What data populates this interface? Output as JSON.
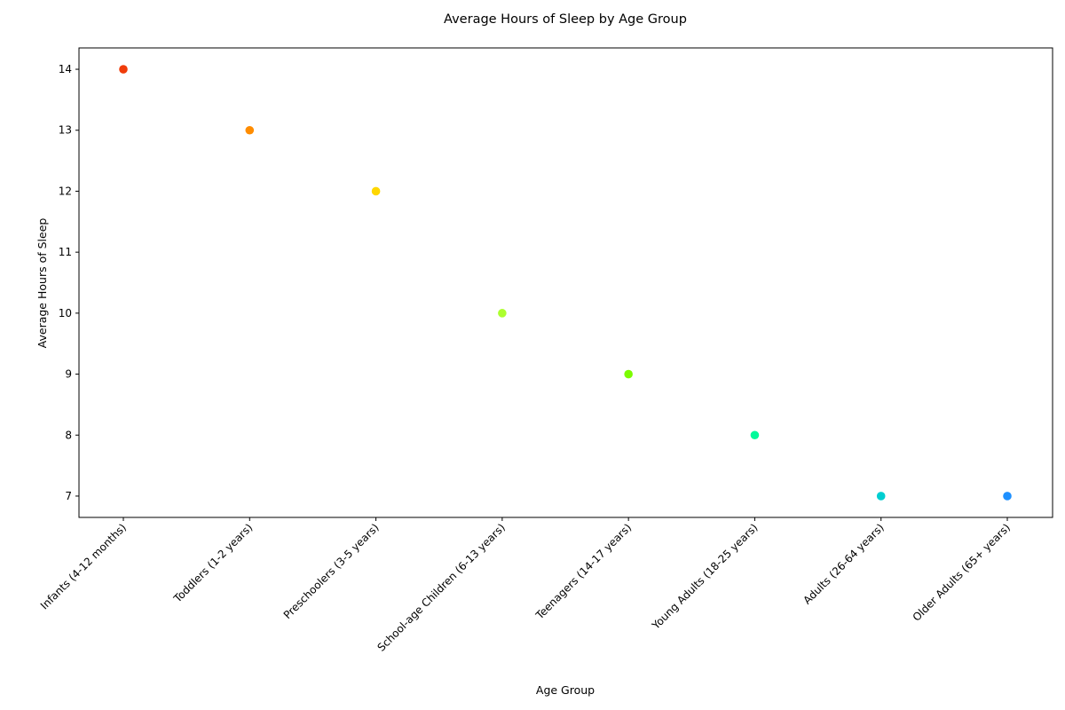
{
  "chart_data": {
    "type": "scatter",
    "title": "Average Hours of Sleep by Age Group",
    "xlabel": "Age Group",
    "ylabel": "Average Hours of Sleep",
    "categories": [
      "Infants (4-12 months)",
      "Toddlers (1-2 years)",
      "Preschoolers (3-5 years)",
      "School-age Children (6-13 years)",
      "Teenagers (14-17 years)",
      "Young Adults (18-25 years)",
      "Adults (26-64 years)",
      "Older Adults (65+ years)"
    ],
    "values": [
      14,
      13,
      12,
      10,
      9,
      8,
      7,
      7
    ],
    "point_colors": [
      "#f03c0a",
      "#ff8c00",
      "#ffd700",
      "#adff2f",
      "#7cfc00",
      "#00fa9a",
      "#00ced1",
      "#1e90ff"
    ],
    "ylim": [
      6.65,
      14.35
    ],
    "yticks": [
      7,
      8,
      9,
      10,
      11,
      12,
      13,
      14
    ],
    "grid": false,
    "legend": "none"
  }
}
